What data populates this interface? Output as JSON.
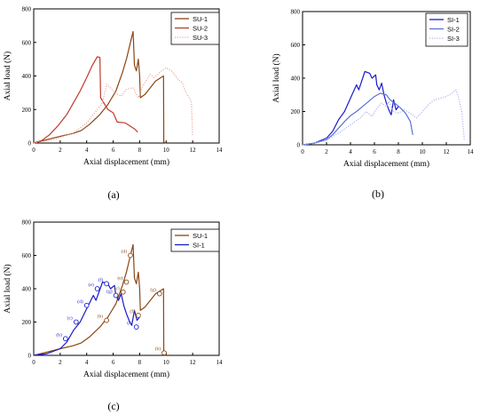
{
  "chart_data": [
    {
      "panel_label": "(a)",
      "type": "line",
      "xlabel": "Axial displacement (mm)",
      "ylabel": "Axial load (N)",
      "xlim": [
        0,
        14
      ],
      "ylim": [
        0,
        800
      ],
      "xticks": [
        0,
        2,
        4,
        6,
        8,
        10,
        12,
        14
      ],
      "yticks": [
        0,
        200,
        400,
        600,
        800
      ],
      "grid": false,
      "legend_position": "top-right",
      "series": [
        {
          "name": "SU-1",
          "color": "#8b4513",
          "dash": "solid",
          "points": [
            [
              0,
              0
            ],
            [
              1,
              20
            ],
            [
              2,
              40
            ],
            [
              3,
              58
            ],
            [
              3.6,
              75
            ],
            [
              4.2,
              110
            ],
            [
              5,
              170
            ],
            [
              5.6,
              230
            ],
            [
              6.2,
              310
            ],
            [
              6.7,
              420
            ],
            [
              7,
              500
            ],
            [
              7.3,
              600
            ],
            [
              7.5,
              665
            ],
            [
              7.6,
              465
            ],
            [
              7.75,
              430
            ],
            [
              7.9,
              500
            ],
            [
              8.0,
              400
            ],
            [
              8.05,
              270
            ],
            [
              8.4,
              290
            ],
            [
              8.8,
              330
            ],
            [
              9.2,
              370
            ],
            [
              9.6,
              390
            ],
            [
              9.8,
              400
            ],
            [
              9.82,
              5
            ],
            [
              10,
              0
            ]
          ]
        },
        {
          "name": "SU-2",
          "color": "#c0392b",
          "dash": "solid",
          "points": [
            [
              0,
              0
            ],
            [
              0.6,
              15
            ],
            [
              1.2,
              50
            ],
            [
              1.8,
              100
            ],
            [
              2.5,
              170
            ],
            [
              3,
              240
            ],
            [
              3.5,
              310
            ],
            [
              4,
              390
            ],
            [
              4.4,
              460
            ],
            [
              4.8,
              515
            ],
            [
              5.0,
              510
            ],
            [
              5.05,
              270
            ],
            [
              5.6,
              200
            ],
            [
              6,
              180
            ],
            [
              6.3,
              125
            ],
            [
              6.9,
              120
            ],
            [
              7.3,
              100
            ],
            [
              7.6,
              85
            ],
            [
              7.85,
              65
            ]
          ]
        },
        {
          "name": "SU-3",
          "color": "#e8a8a0",
          "dash": "dotted",
          "points": [
            [
              0,
              0
            ],
            [
              1.5,
              20
            ],
            [
              3,
              60
            ],
            [
              4,
              120
            ],
            [
              4.8,
              200
            ],
            [
              5.2,
              240
            ],
            [
              5.5,
              350
            ],
            [
              5.9,
              320
            ],
            [
              6.1,
              300
            ],
            [
              6.6,
              280
            ],
            [
              7,
              320
            ],
            [
              7.5,
              330
            ],
            [
              7.9,
              270
            ],
            [
              8.3,
              350
            ],
            [
              8.8,
              410
            ],
            [
              9.1,
              390
            ],
            [
              9.5,
              420
            ],
            [
              10,
              450
            ],
            [
              10.4,
              430
            ],
            [
              10.9,
              380
            ],
            [
              11.2,
              360
            ],
            [
              11.5,
              300
            ],
            [
              11.9,
              250
            ],
            [
              12,
              40
            ]
          ]
        }
      ]
    },
    {
      "panel_label": "(b)",
      "type": "line",
      "xlabel": "Axial displacement (mm)",
      "ylabel": "Axial load (N)",
      "xlim": [
        0,
        14
      ],
      "ylim": [
        0,
        800
      ],
      "xticks": [
        0,
        2,
        4,
        6,
        8,
        10,
        12,
        14
      ],
      "yticks": [
        0,
        200,
        400,
        600,
        800
      ],
      "grid": false,
      "legend_position": "top-right",
      "series": [
        {
          "name": "SI-1",
          "color": "#1a1acc",
          "dash": "solid",
          "points": [
            [
              0,
              0
            ],
            [
              1,
              10
            ],
            [
              2,
              40
            ],
            [
              2.5,
              80
            ],
            [
              3,
              150
            ],
            [
              3.5,
              200
            ],
            [
              4,
              280
            ],
            [
              4.5,
              360
            ],
            [
              4.7,
              330
            ],
            [
              5.2,
              440
            ],
            [
              5.6,
              430
            ],
            [
              5.8,
              400
            ],
            [
              6.1,
              420
            ],
            [
              6.2,
              360
            ],
            [
              6.4,
              330
            ],
            [
              6.6,
              370
            ],
            [
              6.8,
              300
            ],
            [
              7,
              250
            ],
            [
              7.2,
              210
            ],
            [
              7.4,
              180
            ],
            [
              7.6,
              270
            ],
            [
              7.8,
              210
            ],
            [
              8,
              230
            ]
          ]
        },
        {
          "name": "SI-2",
          "color": "#5b6fd8",
          "dash": "solid",
          "points": [
            [
              0,
              0
            ],
            [
              1,
              10
            ],
            [
              2,
              30
            ],
            [
              2.5,
              60
            ],
            [
              3,
              100
            ],
            [
              3.5,
              140
            ],
            [
              4,
              175
            ],
            [
              4.5,
              200
            ],
            [
              5,
              230
            ],
            [
              5.5,
              260
            ],
            [
              6,
              290
            ],
            [
              6.5,
              310
            ],
            [
              7,
              300
            ],
            [
              7.3,
              270
            ],
            [
              7.7,
              250
            ],
            [
              8.2,
              220
            ],
            [
              8.6,
              190
            ],
            [
              9,
              140
            ],
            [
              9.2,
              60
            ]
          ]
        },
        {
          "name": "SI-3",
          "color": "#aab2ee",
          "dash": "dotted",
          "points": [
            [
              0,
              0
            ],
            [
              1,
              10
            ],
            [
              2,
              30
            ],
            [
              3,
              70
            ],
            [
              4,
              120
            ],
            [
              4.8,
              160
            ],
            [
              5.3,
              200
            ],
            [
              5.8,
              170
            ],
            [
              6.2,
              220
            ],
            [
              6.6,
              250
            ],
            [
              7,
              230
            ],
            [
              7.2,
              260
            ],
            [
              7.6,
              200
            ],
            [
              8,
              190
            ],
            [
              8.5,
              210
            ],
            [
              9,
              190
            ],
            [
              9.5,
              160
            ],
            [
              10,
              200
            ],
            [
              10.5,
              240
            ],
            [
              11,
              270
            ],
            [
              11.5,
              280
            ],
            [
              12,
              290
            ],
            [
              12.5,
              310
            ],
            [
              12.8,
              330
            ],
            [
              13,
              290
            ],
            [
              13.3,
              200
            ],
            [
              13.5,
              30
            ]
          ]
        }
      ]
    },
    {
      "panel_label": "(c)",
      "type": "line",
      "xlabel": "Axial displacement (mm)",
      "ylabel": "Axial load (N)",
      "xlim": [
        0,
        14
      ],
      "ylim": [
        0,
        800
      ],
      "xticks": [
        0,
        2,
        4,
        6,
        8,
        10,
        12,
        14
      ],
      "yticks": [
        0,
        200,
        400,
        600,
        800
      ],
      "grid": false,
      "legend_position": "top-right",
      "series": [
        {
          "name": "SU-1",
          "color": "#8b4513",
          "dash": "solid",
          "points": [
            [
              0,
              0
            ],
            [
              1,
              20
            ],
            [
              2,
              40
            ],
            [
              3,
              58
            ],
            [
              3.6,
              75
            ],
            [
              4.2,
              110
            ],
            [
              5,
              170
            ],
            [
              5.6,
              230
            ],
            [
              6.2,
              310
            ],
            [
              6.7,
              420
            ],
            [
              7,
              500
            ],
            [
              7.3,
              600
            ],
            [
              7.5,
              665
            ],
            [
              7.6,
              465
            ],
            [
              7.75,
              430
            ],
            [
              7.9,
              500
            ],
            [
              8.0,
              400
            ],
            [
              8.05,
              270
            ],
            [
              8.4,
              290
            ],
            [
              8.8,
              330
            ],
            [
              9.2,
              370
            ],
            [
              9.6,
              390
            ],
            [
              9.8,
              400
            ],
            [
              9.82,
              5
            ],
            [
              10,
              0
            ]
          ]
        },
        {
          "name": "SI-1",
          "color": "#1a1acc",
          "dash": "solid",
          "points": [
            [
              0,
              0
            ],
            [
              1,
              10
            ],
            [
              2,
              40
            ],
            [
              2.5,
              80
            ],
            [
              3,
              150
            ],
            [
              3.5,
              200
            ],
            [
              4,
              280
            ],
            [
              4.5,
              360
            ],
            [
              4.7,
              330
            ],
            [
              5.2,
              440
            ],
            [
              5.6,
              430
            ],
            [
              5.8,
              400
            ],
            [
              6.1,
              420
            ],
            [
              6.2,
              360
            ],
            [
              6.4,
              330
            ],
            [
              6.6,
              370
            ],
            [
              6.8,
              300
            ],
            [
              7,
              250
            ],
            [
              7.2,
              210
            ],
            [
              7.4,
              180
            ],
            [
              7.6,
              270
            ],
            [
              7.8,
              210
            ],
            [
              8,
              230
            ]
          ]
        }
      ],
      "annotations": [
        {
          "series": "SU-1",
          "label": "(b)",
          "x": 5.5,
          "y": 210
        },
        {
          "series": "SU-1",
          "label": "(c)",
          "x": 6.75,
          "y": 380
        },
        {
          "series": "SU-1",
          "label": "(d)",
          "x": 7.3,
          "y": 600
        },
        {
          "series": "SU-1",
          "label": "(e)",
          "x": 7.0,
          "y": 440
        },
        {
          "series": "SU-1",
          "label": "(f)",
          "x": 7.9,
          "y": 240
        },
        {
          "series": "SU-1",
          "label": "(g)",
          "x": 9.5,
          "y": 370
        },
        {
          "series": "SU-1",
          "label": "(h)",
          "x": 9.85,
          "y": 15
        },
        {
          "series": "SI-1",
          "label": "(b)",
          "x": 2.4,
          "y": 100
        },
        {
          "series": "SI-1",
          "label": "(c)",
          "x": 3.2,
          "y": 200
        },
        {
          "series": "SI-1",
          "label": "(d)",
          "x": 4.0,
          "y": 300
        },
        {
          "series": "SI-1",
          "label": "(e)",
          "x": 4.8,
          "y": 400
        },
        {
          "series": "SI-1",
          "label": "(f)",
          "x": 5.5,
          "y": 430
        },
        {
          "series": "SI-1",
          "label": "(g)",
          "x": 6.2,
          "y": 360
        },
        {
          "series": "SI-1",
          "label": "(h)",
          "x": 7.75,
          "y": 170
        }
      ]
    }
  ]
}
